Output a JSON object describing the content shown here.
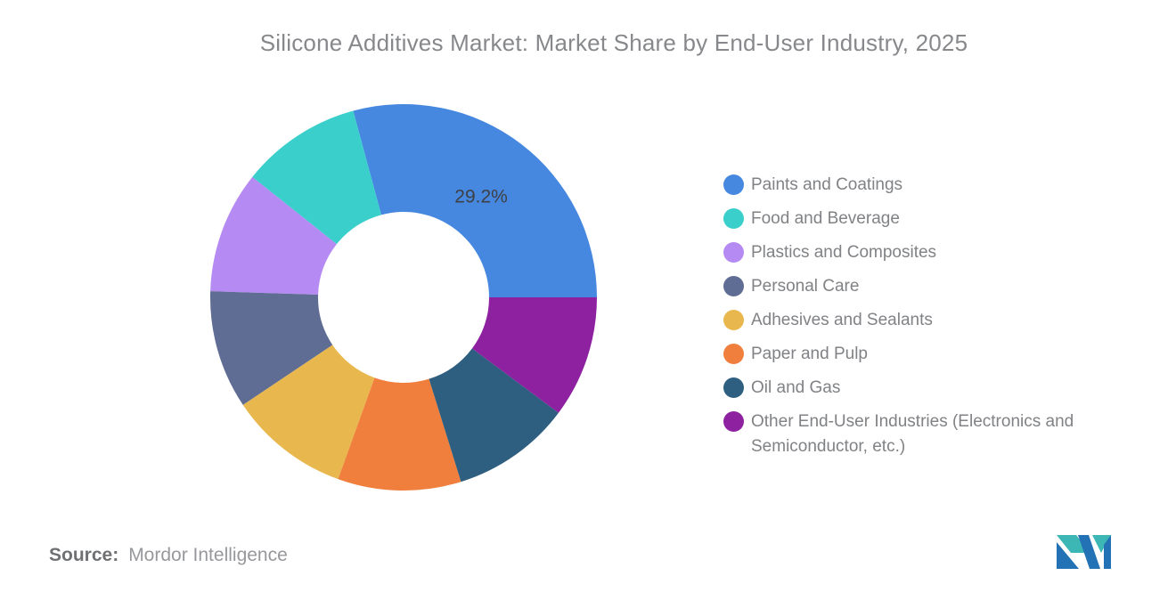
{
  "title": "Silicone Additives Market: Market Share by End-User Industry, 2025",
  "source": {
    "label": "Source:",
    "value": "Mordor Intelligence"
  },
  "logo": {
    "name": "mordor-intelligence-logo",
    "teal": "#3db6b6",
    "blue": "#2272b5"
  },
  "chart_data": {
    "type": "pie",
    "subtype": "donut",
    "title": "Silicone Additives Market: Market Share by End-User Industry, 2025",
    "unit": "percent",
    "start_angle_deg": 90,
    "direction": "counterclockwise",
    "outer_radius": 217,
    "inner_radius": 96,
    "label_radius_ratio": 0.66,
    "legend_position": "right",
    "background": "#ffffff",
    "series": [
      {
        "label": "Paints and Coatings",
        "value": 29.2,
        "color": "#4688e0",
        "data_label": "29.2%"
      },
      {
        "label": "Food and Beverage",
        "value": 10.1,
        "color": "#3bcfcc"
      },
      {
        "label": "Plastics and Composites",
        "value": 10.2,
        "color": "#b58af2"
      },
      {
        "label": "Personal Care",
        "value": 9.9,
        "color": "#5f6c93"
      },
      {
        "label": "Adhesives and Sealants",
        "value": 10.1,
        "color": "#e8b74d"
      },
      {
        "label": "Paper and Pulp",
        "value": 10.3,
        "color": "#f07f3e"
      },
      {
        "label": "Oil and Gas",
        "value": 10.0,
        "color": "#2e5f80"
      },
      {
        "label": "Other End-User Industries (Electronics and Semiconductor, etc.)",
        "value": 10.2,
        "color": "#8e21a0"
      }
    ]
  }
}
